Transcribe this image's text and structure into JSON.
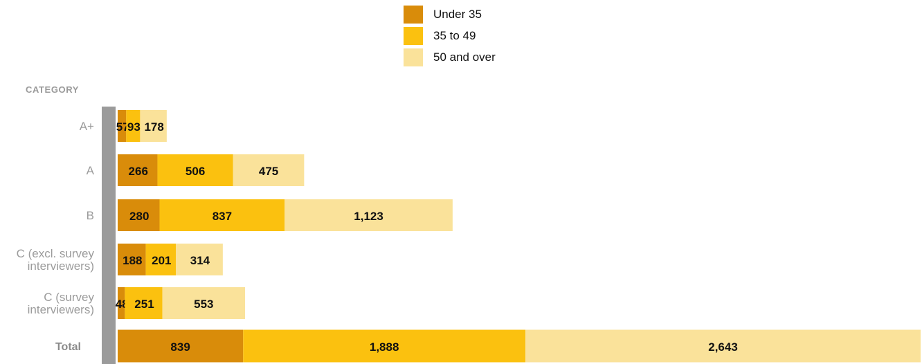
{
  "chart_data": {
    "type": "bar",
    "orientation": "horizontal",
    "stacked": true,
    "axis_title": "CATEGORY",
    "categories": [
      [
        "A+"
      ],
      [
        "A"
      ],
      [
        "B"
      ],
      [
        "C (excl. survey",
        "interviewers)"
      ],
      [
        "C (survey",
        "interviewers)"
      ],
      [
        "Total"
      ]
    ],
    "series": [
      {
        "name": "Under 35",
        "color": "#D98C0A",
        "values": [
          57,
          266,
          280,
          188,
          48,
          839
        ],
        "labels": [
          "57",
          "266",
          "280",
          "188",
          "48",
          "839"
        ]
      },
      {
        "name": "35 to 49",
        "color": "#FBC10F",
        "values": [
          93,
          506,
          837,
          201,
          251,
          1888
        ],
        "labels": [
          "93",
          "506",
          "837",
          "201",
          "251",
          "1,888"
        ]
      },
      {
        "name": "50 and over",
        "color": "#FAE29A",
        "values": [
          178,
          475,
          1123,
          314,
          553,
          2643
        ],
        "labels": [
          "178",
          "475",
          "1,123",
          "314",
          "553",
          "2,643"
        ]
      }
    ],
    "xlim": [
      0,
      5370
    ],
    "legend_position": "top-center",
    "grid": false,
    "axis_line_color": "#9B9B9B",
    "category_label_color": "#9B9B9B",
    "total_label_color": "#8A8A8A"
  }
}
